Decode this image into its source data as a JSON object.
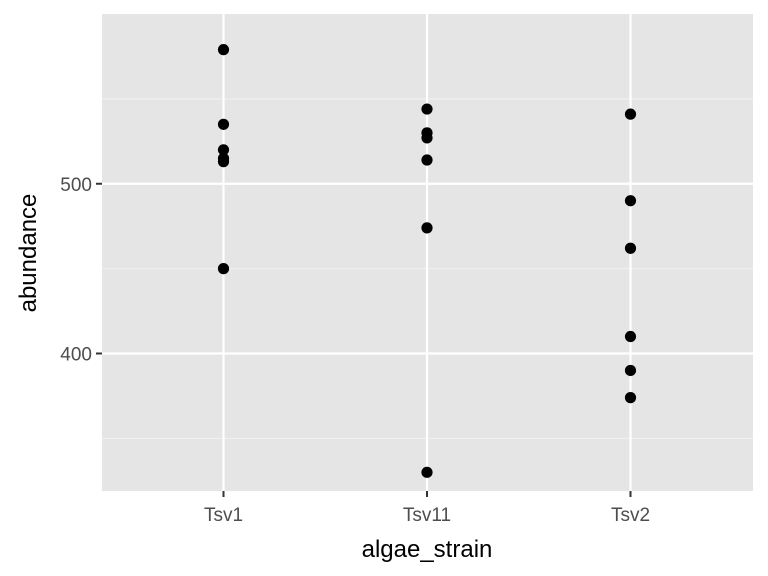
{
  "colors": {
    "panel_background": "#e5e5e5",
    "grid_major": "#ffffff",
    "grid_minor": "#f2f2f2",
    "point": "#000000",
    "tick_text": "#4d4d4d",
    "tick_mark": "#333333"
  },
  "chart_data": {
    "type": "scatter",
    "title": "",
    "xlabel": "algae_strain",
    "ylabel": "abundance",
    "x_scale": "categorical",
    "categories": [
      "Tsv1",
      "Tsv11",
      "Tsv2"
    ],
    "ylim": [
      319,
      600
    ],
    "yticks": [
      400,
      500
    ],
    "yticks_labels": [
      "400",
      "500"
    ],
    "y_minor_ticks": [
      350,
      450,
      550
    ],
    "grid": true,
    "legend": "none",
    "points": [
      {
        "x": "Tsv1",
        "y": 579
      },
      {
        "x": "Tsv1",
        "y": 535
      },
      {
        "x": "Tsv1",
        "y": 520
      },
      {
        "x": "Tsv1",
        "y": 515
      },
      {
        "x": "Tsv1",
        "y": 513
      },
      {
        "x": "Tsv1",
        "y": 450
      },
      {
        "x": "Tsv11",
        "y": 544
      },
      {
        "x": "Tsv11",
        "y": 530
      },
      {
        "x": "Tsv11",
        "y": 527
      },
      {
        "x": "Tsv11",
        "y": 514
      },
      {
        "x": "Tsv11",
        "y": 474
      },
      {
        "x": "Tsv11",
        "y": 330
      },
      {
        "x": "Tsv2",
        "y": 541
      },
      {
        "x": "Tsv2",
        "y": 490
      },
      {
        "x": "Tsv2",
        "y": 462
      },
      {
        "x": "Tsv2",
        "y": 410
      },
      {
        "x": "Tsv2",
        "y": 390
      },
      {
        "x": "Tsv2",
        "y": 374
      }
    ]
  }
}
